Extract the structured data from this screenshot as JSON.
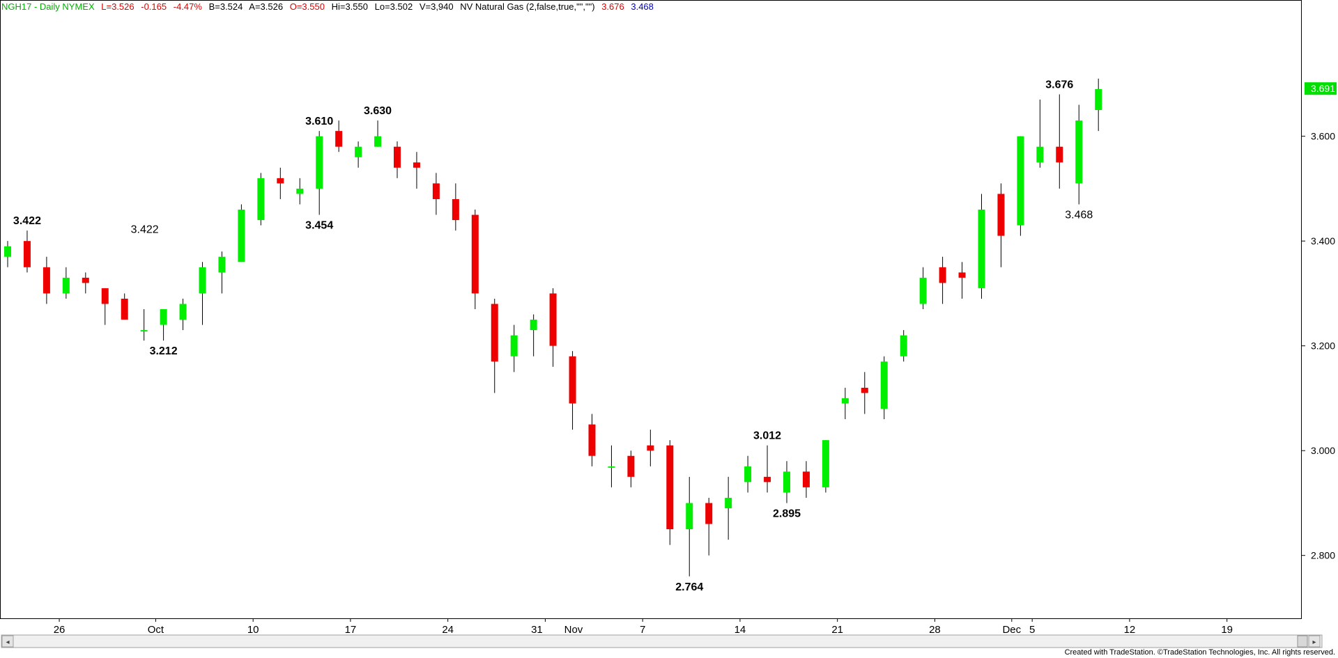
{
  "header": {
    "symbol": "NGH17 - Daily  NYMEX",
    "last": "L=3.526",
    "change": "-0.165",
    "pct": "-4.47%",
    "bid": "B=3.524",
    "ask": "A=3.526",
    "open": "O=3.550",
    "high": "Hi=3.550",
    "low": "Lo=3.502",
    "volume": "V=3,940",
    "study": "NV Natural Gas (2,false,true,\"\",\"\")",
    "value1": "3.676",
    "value2": "3.468"
  },
  "footer": "Created with TradeStation. ©TradeStation Technologies, Inc. All rights reserved.",
  "colors": {
    "up": "#00ee00",
    "down": "#ee0000",
    "last_price_bg": "#00e000",
    "axis": "#000000"
  },
  "chart_data": {
    "type": "candlestick",
    "title": "",
    "ylim": [
      2.68,
      3.86
    ],
    "y_ticks": [
      "2.800",
      "3.000",
      "3.200",
      "3.400",
      "3.600"
    ],
    "last_price_label": "3.691",
    "x_tick_labels": [
      "26",
      "Oct",
      "10",
      "17",
      "24",
      "31",
      "Nov",
      "7",
      "14",
      "21",
      "28",
      "Dec",
      "5",
      "12",
      "19"
    ],
    "candles": [
      {
        "i": 0,
        "o": 3.37,
        "h": 3.4,
        "l": 3.35,
        "c": 3.39
      },
      {
        "i": 1,
        "o": 3.4,
        "h": 3.42,
        "l": 3.34,
        "c": 3.35
      },
      {
        "i": 2,
        "o": 3.35,
        "h": 3.37,
        "l": 3.28,
        "c": 3.3
      },
      {
        "i": 3,
        "o": 3.3,
        "h": 3.35,
        "l": 3.29,
        "c": 3.33
      },
      {
        "i": 4,
        "o": 3.33,
        "h": 3.34,
        "l": 3.3,
        "c": 3.32
      },
      {
        "i": 5,
        "o": 3.31,
        "h": 3.31,
        "l": 3.24,
        "c": 3.28
      },
      {
        "i": 6,
        "o": 3.29,
        "h": 3.3,
        "l": 3.25,
        "c": 3.25
      },
      {
        "i": 7,
        "o": 3.23,
        "h": 3.27,
        "l": 3.21,
        "c": 3.23
      },
      {
        "i": 8,
        "o": 3.24,
        "h": 3.27,
        "l": 3.21,
        "c": 3.27
      },
      {
        "i": 9,
        "o": 3.25,
        "h": 3.29,
        "l": 3.23,
        "c": 3.28
      },
      {
        "i": 10,
        "o": 3.3,
        "h": 3.36,
        "l": 3.24,
        "c": 3.35
      },
      {
        "i": 11,
        "o": 3.34,
        "h": 3.38,
        "l": 3.3,
        "c": 3.37
      },
      {
        "i": 12,
        "o": 3.36,
        "h": 3.47,
        "l": 3.36,
        "c": 3.46
      },
      {
        "i": 13,
        "o": 3.44,
        "h": 3.53,
        "l": 3.43,
        "c": 3.52
      },
      {
        "i": 14,
        "o": 3.52,
        "h": 3.54,
        "l": 3.48,
        "c": 3.51
      },
      {
        "i": 15,
        "o": 3.49,
        "h": 3.52,
        "l": 3.47,
        "c": 3.5
      },
      {
        "i": 16,
        "o": 3.5,
        "h": 3.61,
        "l": 3.45,
        "c": 3.6
      },
      {
        "i": 17,
        "o": 3.61,
        "h": 3.63,
        "l": 3.57,
        "c": 3.58
      },
      {
        "i": 18,
        "o": 3.56,
        "h": 3.59,
        "l": 3.54,
        "c": 3.58
      },
      {
        "i": 19,
        "o": 3.58,
        "h": 3.63,
        "l": 3.58,
        "c": 3.6
      },
      {
        "i": 20,
        "o": 3.58,
        "h": 3.59,
        "l": 3.52,
        "c": 3.54
      },
      {
        "i": 21,
        "o": 3.55,
        "h": 3.57,
        "l": 3.5,
        "c": 3.54
      },
      {
        "i": 22,
        "o": 3.51,
        "h": 3.53,
        "l": 3.45,
        "c": 3.48
      },
      {
        "i": 23,
        "o": 3.48,
        "h": 3.51,
        "l": 3.42,
        "c": 3.44
      },
      {
        "i": 24,
        "o": 3.45,
        "h": 3.46,
        "l": 3.27,
        "c": 3.3
      },
      {
        "i": 25,
        "o": 3.28,
        "h": 3.29,
        "l": 3.11,
        "c": 3.17
      },
      {
        "i": 26,
        "o": 3.18,
        "h": 3.24,
        "l": 3.15,
        "c": 3.22
      },
      {
        "i": 27,
        "o": 3.23,
        "h": 3.26,
        "l": 3.18,
        "c": 3.25
      },
      {
        "i": 28,
        "o": 3.3,
        "h": 3.31,
        "l": 3.16,
        "c": 3.2
      },
      {
        "i": 29,
        "o": 3.18,
        "h": 3.19,
        "l": 3.04,
        "c": 3.09
      },
      {
        "i": 30,
        "o": 3.05,
        "h": 3.07,
        "l": 2.97,
        "c": 2.99
      },
      {
        "i": 31,
        "o": 2.97,
        "h": 3.01,
        "l": 2.93,
        "c": 2.97
      },
      {
        "i": 32,
        "o": 2.99,
        "h": 3.0,
        "l": 2.93,
        "c": 2.95
      },
      {
        "i": 33,
        "o": 3.01,
        "h": 3.04,
        "l": 2.97,
        "c": 3.0
      },
      {
        "i": 34,
        "o": 3.01,
        "h": 3.02,
        "l": 2.82,
        "c": 2.85
      },
      {
        "i": 35,
        "o": 2.85,
        "h": 2.95,
        "l": 2.76,
        "c": 2.9
      },
      {
        "i": 36,
        "o": 2.9,
        "h": 2.91,
        "l": 2.8,
        "c": 2.86
      },
      {
        "i": 37,
        "o": 2.89,
        "h": 2.95,
        "l": 2.83,
        "c": 2.91
      },
      {
        "i": 38,
        "o": 2.94,
        "h": 2.99,
        "l": 2.92,
        "c": 2.97
      },
      {
        "i": 39,
        "o": 2.95,
        "h": 3.01,
        "l": 2.92,
        "c": 2.94
      },
      {
        "i": 40,
        "o": 2.92,
        "h": 2.98,
        "l": 2.9,
        "c": 2.96
      },
      {
        "i": 41,
        "o": 2.96,
        "h": 2.98,
        "l": 2.91,
        "c": 2.93
      },
      {
        "i": 42,
        "o": 2.93,
        "h": 3.02,
        "l": 2.92,
        "c": 3.02
      },
      {
        "i": 43,
        "o": 3.09,
        "h": 3.12,
        "l": 3.06,
        "c": 3.1
      },
      {
        "i": 44,
        "o": 3.12,
        "h": 3.15,
        "l": 3.07,
        "c": 3.11
      },
      {
        "i": 45,
        "o": 3.08,
        "h": 3.18,
        "l": 3.06,
        "c": 3.17
      },
      {
        "i": 46,
        "o": 3.18,
        "h": 3.23,
        "l": 3.17,
        "c": 3.22
      },
      {
        "i": 47,
        "o": 3.28,
        "h": 3.35,
        "l": 3.27,
        "c": 3.33
      },
      {
        "i": 48,
        "o": 3.35,
        "h": 3.37,
        "l": 3.28,
        "c": 3.32
      },
      {
        "i": 49,
        "o": 3.34,
        "h": 3.36,
        "l": 3.29,
        "c": 3.33
      },
      {
        "i": 50,
        "o": 3.31,
        "h": 3.49,
        "l": 3.29,
        "c": 3.46
      },
      {
        "i": 51,
        "o": 3.49,
        "h": 3.51,
        "l": 3.35,
        "c": 3.41
      },
      {
        "i": 52,
        "o": 3.43,
        "h": 3.6,
        "l": 3.41,
        "c": 3.6
      },
      {
        "i": 53,
        "o": 3.55,
        "h": 3.67,
        "l": 3.54,
        "c": 3.58
      },
      {
        "i": 54,
        "o": 3.58,
        "h": 3.68,
        "l": 3.5,
        "c": 3.55
      },
      {
        "i": 55,
        "o": 3.51,
        "h": 3.66,
        "l": 3.47,
        "c": 3.63
      },
      {
        "i": 56,
        "o": 3.65,
        "h": 3.71,
        "l": 3.61,
        "c": 3.69
      }
    ],
    "annotations": [
      {
        "text": "3.422",
        "i": 1,
        "price": 3.422,
        "pos": "above",
        "bold": true
      },
      {
        "text": "3.422",
        "i": 7,
        "price": 3.422,
        "pos": "free",
        "bold": false
      },
      {
        "text": "3.212",
        "i": 8,
        "price": 3.212,
        "pos": "below",
        "bold": true
      },
      {
        "text": "3.610",
        "i": 16,
        "price": 3.61,
        "pos": "above",
        "bold": true
      },
      {
        "text": "3.454",
        "i": 16,
        "price": 3.454,
        "pos": "below",
        "bold": true
      },
      {
        "text": "3.630",
        "i": 19,
        "price": 3.63,
        "pos": "above",
        "bold": true
      },
      {
        "text": "2.764",
        "i": 35,
        "price": 2.764,
        "pos": "below",
        "bold": true
      },
      {
        "text": "3.012",
        "i": 39,
        "price": 3.012,
        "pos": "above",
        "bold": true
      },
      {
        "text": "2.895",
        "i": 40,
        "price": 2.895,
        "pos": "below",
        "bold": true
      },
      {
        "text": "3.676",
        "i": 54,
        "price": 3.676,
        "pos": "above",
        "bold": true
      },
      {
        "text": "3.468",
        "i": 55,
        "price": 3.468,
        "pos": "below",
        "bold": false
      }
    ]
  }
}
